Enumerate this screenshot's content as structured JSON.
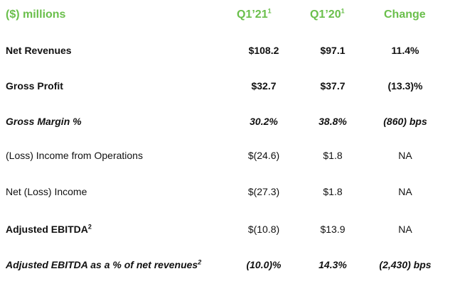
{
  "header": {
    "label": "($) millions",
    "q1_21": "Q1’21",
    "q1_21_sup": "1",
    "q1_20": "Q1’20",
    "q1_20_sup": "1",
    "change": "Change",
    "accent_color": "#6abf4b"
  },
  "rows": [
    {
      "label": "Net Revenues",
      "label_sup": "",
      "q1_21": "$108.2",
      "q1_20": "$97.1",
      "change": "11.4%",
      "style": "bold"
    },
    {
      "label": "Gross Profit",
      "label_sup": "",
      "q1_21": "$32.7",
      "q1_20": "$37.7",
      "change": "(13.3)%",
      "style": "bold"
    },
    {
      "label": "Gross Margin %",
      "label_sup": "",
      "q1_21": "30.2%",
      "q1_20": "38.8%",
      "change": "(860) bps",
      "style": "bolditalic"
    },
    {
      "label": "(Loss) Income from Operations",
      "label_sup": "",
      "q1_21": "$(24.6)",
      "q1_20": "$1.8",
      "change": "NA",
      "style": "normal"
    },
    {
      "label": "Net (Loss) Income",
      "label_sup": "",
      "q1_21": "$(27.3)",
      "q1_20": "$1.8",
      "change": "NA",
      "style": "normal"
    },
    {
      "label": "Adjusted EBITDA",
      "label_sup": "2",
      "q1_21": "$(10.8)",
      "q1_20": "$13.9",
      "change": "NA",
      "style": "bold",
      "values_style": "normal"
    },
    {
      "label": "Adjusted EBITDA as a % of net revenues",
      "label_sup": "2",
      "q1_21": "(10.0)%",
      "q1_20": "14.3%",
      "change": "(2,430) bps",
      "style": "bolditalic"
    }
  ]
}
